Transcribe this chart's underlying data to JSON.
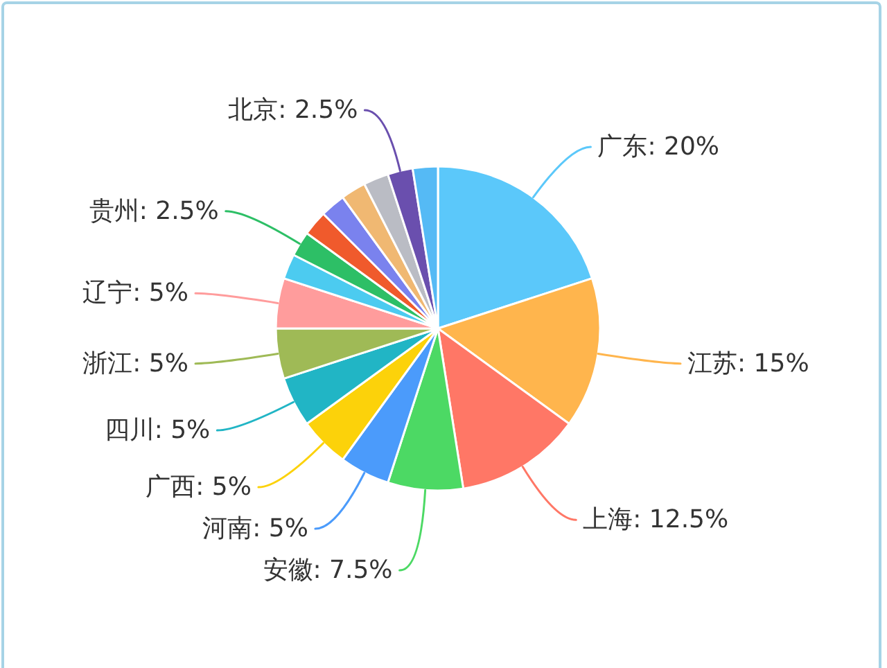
{
  "chart_data": {
    "type": "pie",
    "categories": [
      "广东",
      "江苏",
      "上海",
      "安徽",
      "河南",
      "广西",
      "四川",
      "浙江",
      "辽宁",
      null,
      "贵州",
      null,
      null,
      null,
      null,
      "北京",
      null
    ],
    "values": [
      20,
      15,
      12.5,
      7.5,
      5,
      5,
      5,
      5,
      5,
      2.5,
      2.5,
      2.5,
      2.5,
      2.5,
      2.5,
      2.5,
      2.5
    ],
    "colors": [
      "#5bc8fa",
      "#ffb54d",
      "#ff7766",
      "#4cd964",
      "#4b9bfb",
      "#fcd20a",
      "#21b5c5",
      "#9fba56",
      "#ff9c9c",
      "#4ccbf0",
      "#2dbf66",
      "#f05a2c",
      "#7a82ee",
      "#f0b872",
      "#babcc4",
      "#6a4fae",
      "#55baf5"
    ],
    "value_labels": [
      "20%",
      "15%",
      "12.5%",
      "7.5%",
      "5%",
      "5%",
      "5%",
      "5%",
      "5%",
      null,
      "2.5%",
      null,
      null,
      null,
      null,
      "2.5%",
      null
    ]
  }
}
